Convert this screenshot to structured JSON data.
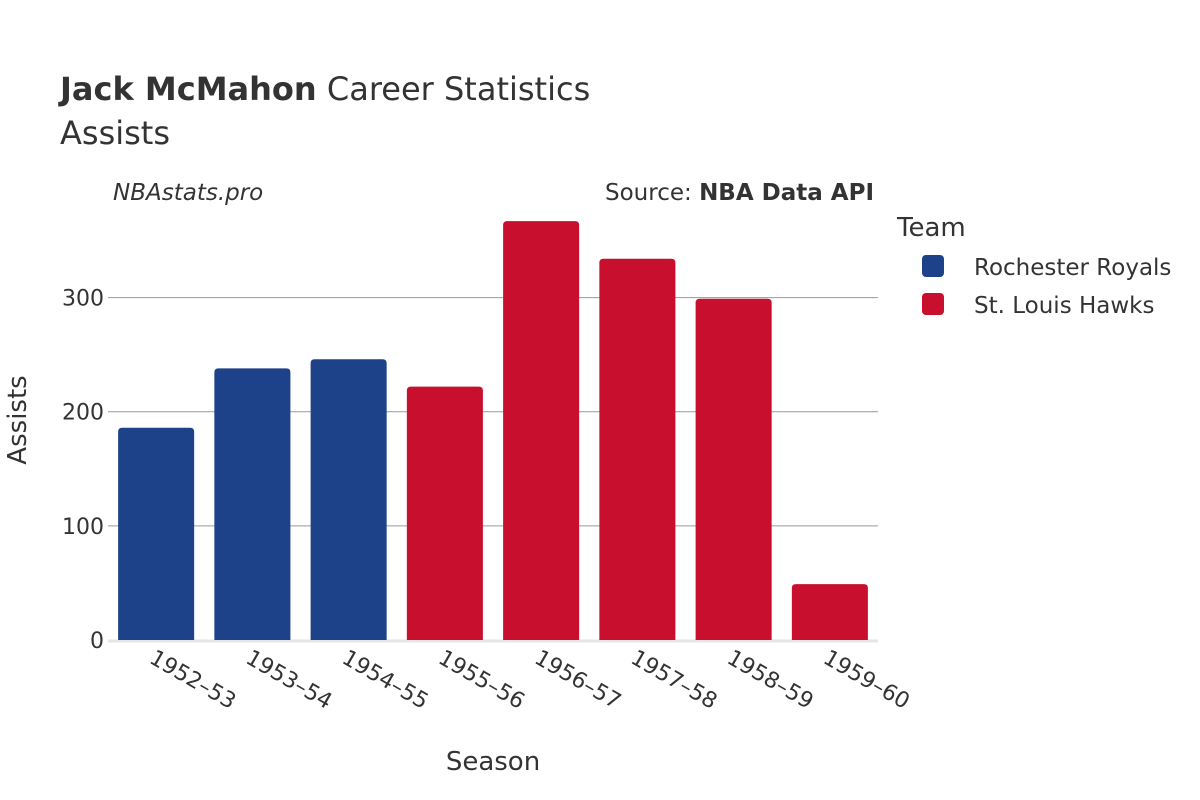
{
  "header": {
    "player_name": "Jack McMahon",
    "title_suffix": " Career Statistics",
    "subtitle": "Assists",
    "watermark": "NBAstats.pro",
    "source_prefix": "Source: ",
    "source_name": "NBA Data API"
  },
  "legend": {
    "title": "Team",
    "items": [
      {
        "label": "Rochester Royals",
        "color": "#1d428a"
      },
      {
        "label": "St. Louis Hawks",
        "color": "#c8102e"
      }
    ]
  },
  "chart_data": {
    "type": "bar",
    "xlabel": "Season",
    "ylabel": "Assists",
    "ylim": [
      0,
      375
    ],
    "yticks": [
      0,
      100,
      200,
      300
    ],
    "categories": [
      "1952–53",
      "1953–54",
      "1954–55",
      "1955–56",
      "1956–57",
      "1957–58",
      "1958–59",
      "1959–60"
    ],
    "values": [
      186,
      238,
      246,
      222,
      367,
      334,
      299,
      49
    ],
    "teams": [
      "Rochester Royals",
      "Rochester Royals",
      "Rochester Royals",
      "St. Louis Hawks",
      "St. Louis Hawks",
      "St. Louis Hawks",
      "St. Louis Hawks",
      "St. Louis Hawks"
    ],
    "colors": {
      "Rochester Royals": "#1d428a",
      "St. Louis Hawks": "#c8102e"
    },
    "legend_position": "right"
  }
}
